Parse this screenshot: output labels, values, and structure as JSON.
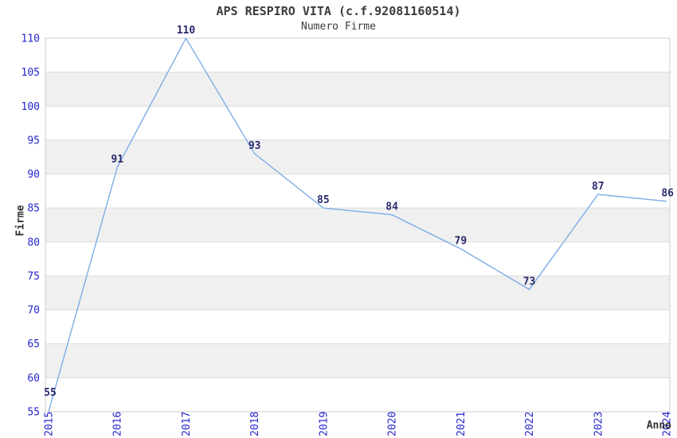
{
  "chart_data": {
    "type": "line",
    "title": "APS RESPIRO VITA (c.f.92081160514)",
    "subtitle": "Numero Firme",
    "xlabel": "Anno",
    "ylabel": "Firme",
    "categories": [
      "2015",
      "2016",
      "2017",
      "2018",
      "2019",
      "2020",
      "2021",
      "2022",
      "2023",
      "2024"
    ],
    "values": [
      55,
      91,
      110,
      93,
      85,
      84,
      79,
      73,
      87,
      86
    ],
    "ylim": [
      55,
      110
    ],
    "ytick_step": 5,
    "grid": "horizontal-lines-with-alternating-bands",
    "legend": "none",
    "colors": {
      "line": "#7dade6",
      "band": "#f0f0f0",
      "grid": "#dcdcdc",
      "border": "#cccccc",
      "tick_label": "#2525cd",
      "data_label": "#2a2a6e",
      "title": "#3c3c3c",
      "axis_title": "#333333",
      "background": "#ffffff"
    }
  }
}
